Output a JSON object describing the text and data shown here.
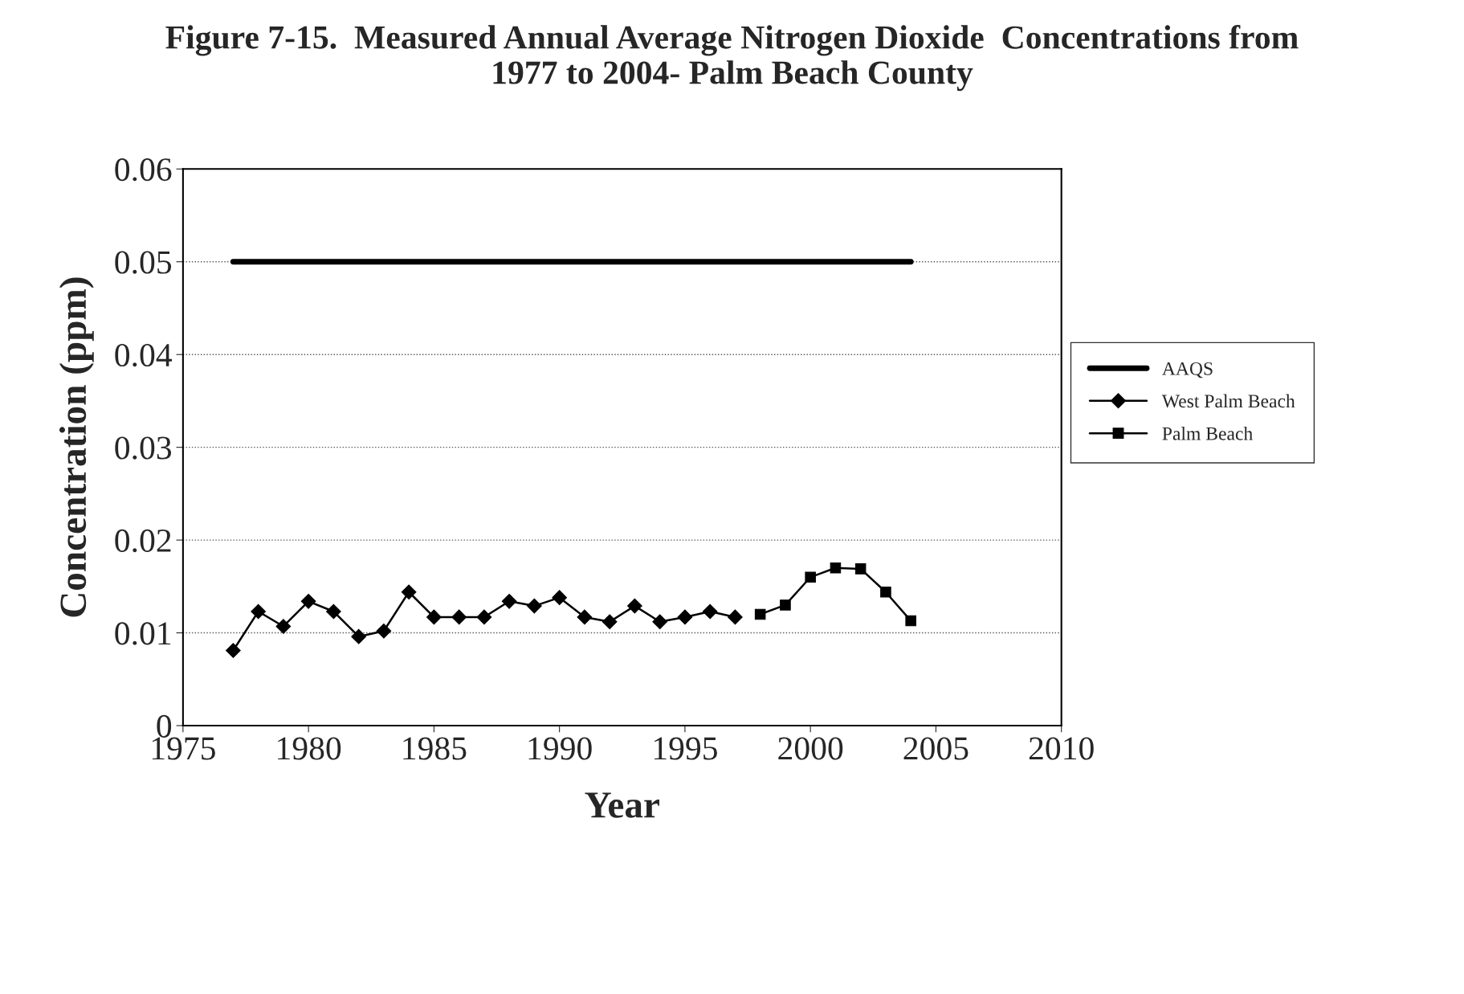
{
  "chart_data": {
    "type": "line",
    "title": "Figure 7-15.  Measured Annual Average Nitrogen Dioxide  Concentrations from\n1977 to 2004- Palm Beach County",
    "xlabel": "Year",
    "ylabel": "Concentration (ppm)",
    "xlim": [
      1975,
      2010
    ],
    "xticks": [
      1975,
      1980,
      1985,
      1990,
      1995,
      2000,
      2005,
      2010
    ],
    "ylim": [
      0,
      0.06
    ],
    "yticks": [
      0,
      0.01,
      0.02,
      0.03,
      0.04,
      0.05,
      0.06
    ],
    "grid": "y",
    "legend": "right",
    "series": [
      {
        "name": "AAQS",
        "color": "#000000",
        "marker": "none",
        "x": [
          1977,
          2004
        ],
        "values": [
          0.05,
          0.05
        ]
      },
      {
        "name": "West Palm Beach",
        "color": "#000000",
        "marker": "diamond",
        "x": [
          1977,
          1978,
          1979,
          1980,
          1981,
          1982,
          1983,
          1984,
          1985,
          1986,
          1987,
          1988,
          1989,
          1990,
          1991,
          1992,
          1993,
          1994,
          1995,
          1996,
          1997
        ],
        "values": [
          0.0081,
          0.0123,
          0.0107,
          0.0134,
          0.0123,
          0.0096,
          0.0102,
          0.0144,
          0.0117,
          0.0117,
          0.0117,
          0.0134,
          0.0129,
          0.0138,
          0.0117,
          0.0112,
          0.0129,
          0.0112,
          0.0117,
          0.0123,
          0.0117
        ]
      },
      {
        "name": "Palm Beach",
        "color": "#000000",
        "marker": "square",
        "x": [
          1998,
          1999,
          2000,
          2001,
          2002,
          2003,
          2004
        ],
        "values": [
          0.012,
          0.013,
          0.016,
          0.017,
          0.0169,
          0.0144,
          0.0113
        ]
      }
    ]
  }
}
